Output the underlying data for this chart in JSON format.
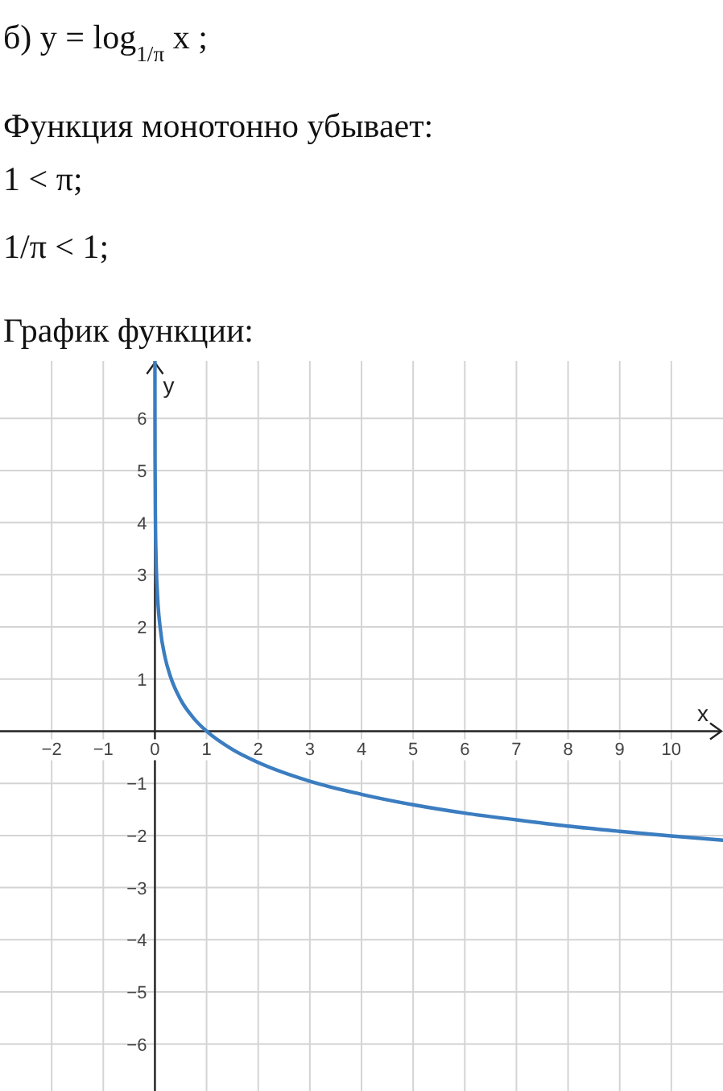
{
  "chart_data": {
    "type": "line",
    "title": "б) y = log$_{1/π}$ x ;",
    "annotations": [
      "Функция монотонно убывает:",
      "1 < π;",
      "1/π < 1;",
      "График функции:"
    ],
    "xlabel": "x",
    "ylabel": "y",
    "xlim": [
      -3,
      11
    ],
    "ylim": [
      -6.9,
      7.1
    ],
    "xticks": [
      -2,
      -1,
      0,
      1,
      2,
      3,
      4,
      5,
      6,
      7,
      8,
      9,
      10
    ],
    "yticks": [
      -6,
      -5,
      -4,
      -3,
      -2,
      -1,
      1,
      2,
      3,
      4,
      5,
      6
    ],
    "grid": true,
    "color": "#3b7dc0",
    "x": [
      0.0003,
      0.001,
      0.003,
      0.01,
      0.02,
      0.05,
      0.1,
      0.2,
      0.3,
      0.5,
      0.75,
      1,
      1.5,
      2,
      3,
      4,
      5,
      6,
      7,
      8,
      9,
      10,
      11
    ],
    "values": [
      7.1,
      6.0,
      5.1,
      4.0,
      3.4,
      2.6,
      2.0,
      1.4,
      1.05,
      0.6,
      0.25,
      0,
      -0.35,
      -0.6,
      -0.96,
      -1.21,
      -1.41,
      -1.57,
      -1.7,
      -1.82,
      -1.92,
      -2.01,
      -2.09
    ]
  }
}
